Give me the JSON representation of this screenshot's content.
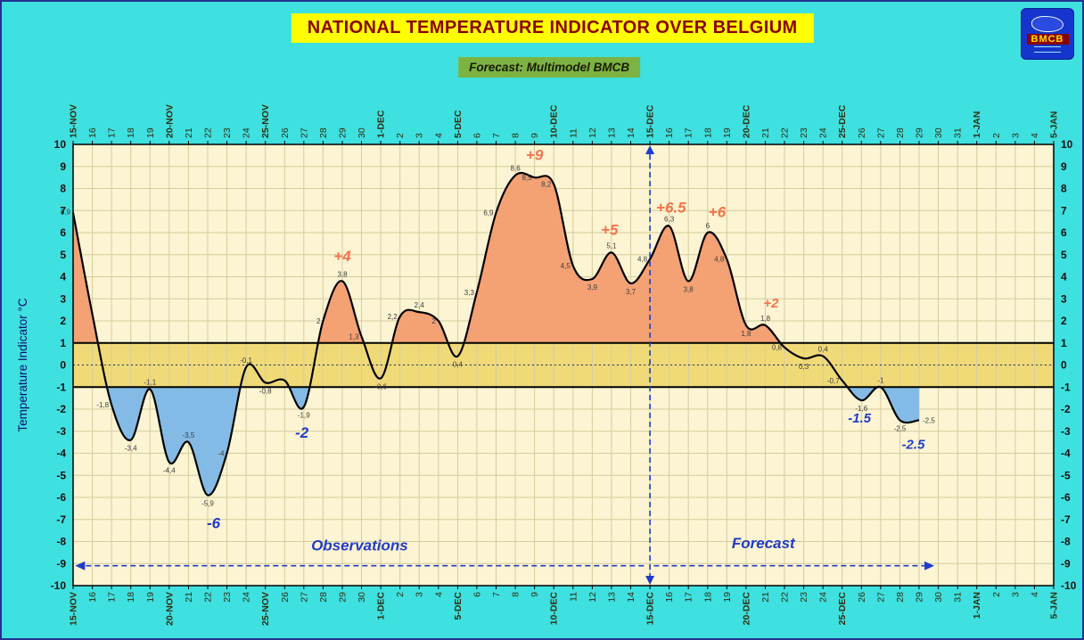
{
  "page": {
    "background": "#3fe0e0",
    "frame_color": "#23318f"
  },
  "header": {
    "title": "NATIONAL TEMPERATURE INDICATOR OVER  BELGIUM",
    "subtitle": "Forecast:  Multimodel BMCB",
    "logo_text": "BMCB"
  },
  "chart_data": {
    "type": "line",
    "title": "NATIONAL TEMPERATURE INDICATOR OVER BELGIUM",
    "ylabel": "Temperature Indicator  °C",
    "ylim": [
      -10,
      10
    ],
    "y_tick_step": 1,
    "grid": true,
    "x_tick_labels": [
      "15-NOV",
      "16",
      "17",
      "18",
      "19",
      "20-NOV",
      "21",
      "22",
      "23",
      "24",
      "25-NOV",
      "26",
      "27",
      "28",
      "29",
      "30",
      "1-DEC",
      "2",
      "3",
      "4",
      "5-DEC",
      "6",
      "7",
      "8",
      "9",
      "10-DEC",
      "11",
      "12",
      "13",
      "14",
      "15-DEC",
      "16",
      "17",
      "18",
      "19",
      "20-DEC",
      "21",
      "22",
      "23",
      "24",
      "25-DEC",
      "26",
      "27",
      "28",
      "29",
      "30",
      "31",
      "1-JAN",
      "2",
      "3",
      "4",
      "5-JAN"
    ],
    "series": [
      {
        "name": "National temperature indicator",
        "x_start_index": 0,
        "values": [
          6.9,
          2.3,
          -1.8,
          -3.4,
          -1.1,
          -4.4,
          -3.5,
          -5.9,
          -4.0,
          -0.1,
          -0.8,
          -0.7,
          -1.9,
          2.0,
          3.8,
          1.3,
          -0.6,
          2.2,
          2.4,
          2.0,
          0.4,
          3.3,
          6.9,
          8.6,
          8.5,
          8.2,
          4.5,
          3.9,
          5.1,
          3.7,
          4.8,
          6.3,
          3.8,
          6.0,
          4.8,
          1.8,
          1.8,
          0.8,
          0.3,
          0.4,
          -0.7,
          -1.6,
          -1.0,
          -2.5,
          -2.5
        ],
        "point_labels": [
          "6,9",
          "",
          "-1,8",
          "-3,4",
          "-1,1",
          "-4,4",
          "-3,5",
          "-5,9",
          "-4",
          "-0,1",
          "-0,8",
          "",
          "-1,9",
          "2",
          "3,8",
          "1,3",
          "-0,6",
          "2,2",
          "2,4",
          "2",
          "0,4",
          "3,3",
          "6,9",
          "8,6",
          "8,5",
          "8,2",
          "4,5",
          "3,9",
          "5,1",
          "3,7",
          "4,8",
          "6,3",
          "3,8",
          "6",
          "4,8",
          "1,8",
          "1,8",
          "0,8",
          "0,3",
          "0,4",
          "-0,7",
          "-1,6",
          "-1",
          "-2,5",
          "-2,5"
        ]
      }
    ],
    "neutral_band": {
      "from": -1,
      "to": 1
    },
    "thresholds": {
      "upper": 1,
      "lower": -1
    },
    "annotations": [
      {
        "text": "+4",
        "x": 14.0,
        "y": 4.7,
        "color": "#f4734a",
        "size": 17
      },
      {
        "text": "+9",
        "x": 24.0,
        "y": 9.3,
        "color": "#f4734a",
        "size": 17
      },
      {
        "text": "+5",
        "x": 27.9,
        "y": 5.9,
        "color": "#f4734a",
        "size": 17
      },
      {
        "text": "+6.5",
        "x": 31.1,
        "y": 6.9,
        "color": "#f4734a",
        "size": 17
      },
      {
        "text": "+6",
        "x": 33.5,
        "y": 6.7,
        "color": "#f4734a",
        "size": 17
      },
      {
        "text": "+2",
        "x": 36.3,
        "y": 2.6,
        "color": "#f4734a",
        "size": 15
      },
      {
        "text": "-6",
        "x": 7.3,
        "y": -7.4,
        "color": "#1e3cc8",
        "size": 17
      },
      {
        "text": "-2",
        "x": 11.9,
        "y": -3.3,
        "color": "#1e3cc8",
        "size": 17
      },
      {
        "text": "-1.5",
        "x": 40.9,
        "y": -2.6,
        "color": "#1e3cc8",
        "size": 15
      },
      {
        "text": "-2.5",
        "x": 43.7,
        "y": -3.8,
        "color": "#1e3cc8",
        "size": 15
      }
    ],
    "divider_x": 30,
    "regions": {
      "left": {
        "label": "Observations",
        "x": 14.9,
        "y": -8.4
      },
      "right": {
        "label": "Forecast",
        "x": 35.9,
        "y": -8.3
      },
      "arrow_y": -9.1,
      "left_arrow": [
        0.2,
        29.8
      ],
      "right_arrow": [
        30.2,
        44.7
      ]
    },
    "colors": {
      "plot_bg": "#fcf4d2",
      "band": "#f0da78",
      "grid": "#d5cc9e",
      "fill_above": "#f4a173",
      "fill_below": "#84bbe6",
      "line": "#000000",
      "dashed": "#1e3cc8",
      "point_label": "#3c3c3c",
      "ylabel_color": "#10106e"
    }
  }
}
